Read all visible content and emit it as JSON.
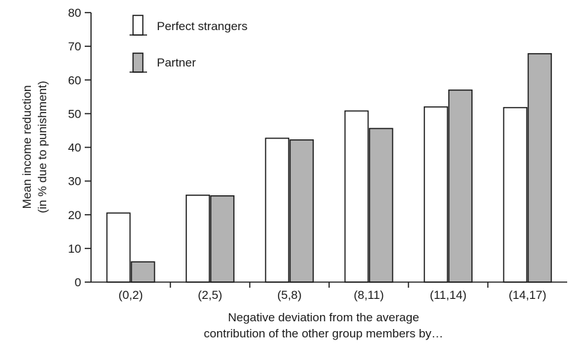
{
  "chart_data": {
    "type": "bar",
    "categories": [
      "(0,2)",
      "(2,5)",
      "(5,8)",
      "(8,11)",
      "(11,14)",
      "(14,17)"
    ],
    "series": [
      {
        "name": "Perfect strangers",
        "values": [
          20.5,
          25.8,
          42.7,
          50.8,
          52.0,
          51.8
        ],
        "color": "#ffffff"
      },
      {
        "name": "Partner",
        "values": [
          6.0,
          25.6,
          42.2,
          45.6,
          57.0,
          67.8
        ],
        "color": "#b3b3b3"
      }
    ],
    "xlabel": [
      "Negative deviation from the average",
      "contribution of the other group members by…"
    ],
    "ylabel": [
      "Mean income reduction",
      "(in % due to punishment)"
    ],
    "ylim": [
      0,
      80
    ],
    "yticks": [
      0,
      10,
      20,
      30,
      40,
      50,
      60,
      70,
      80
    ],
    "ytick_labels": [
      "0",
      "10",
      "20",
      "30",
      "40",
      "50",
      "60",
      "70",
      "80"
    ],
    "legend_position": "top-left",
    "grid": false,
    "colors": {
      "stroke": "#1a1a1a",
      "partner_fill": "#b3b3b3",
      "strangers_fill": "#ffffff"
    }
  }
}
